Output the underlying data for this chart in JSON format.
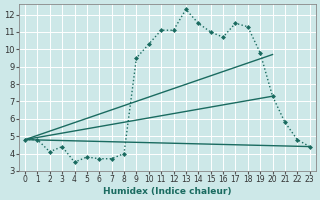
{
  "title": "",
  "xlabel": "Humidex (Indice chaleur)",
  "ylabel": "",
  "bg_color": "#cde8e8",
  "grid_color": "#b8d8d8",
  "line_color": "#1a6b60",
  "xlim": [
    -0.5,
    23.5
  ],
  "ylim": [
    3.0,
    12.6
  ],
  "xticks": [
    0,
    1,
    2,
    3,
    4,
    5,
    6,
    7,
    8,
    9,
    10,
    11,
    12,
    13,
    14,
    15,
    16,
    17,
    18,
    19,
    20,
    21,
    22,
    23
  ],
  "yticks": [
    3,
    4,
    5,
    6,
    7,
    8,
    9,
    10,
    11,
    12
  ],
  "series": [
    {
      "x": [
        0,
        1,
        2,
        3,
        4,
        5,
        6,
        7,
        8,
        9,
        10,
        11,
        12,
        13,
        14,
        15,
        16,
        17,
        18,
        19,
        20,
        21,
        22,
        23
      ],
      "y": [
        4.8,
        4.8,
        4.1,
        4.4,
        3.5,
        3.8,
        3.7,
        3.7,
        4.0,
        9.5,
        10.3,
        11.1,
        11.1,
        12.3,
        11.5,
        11.0,
        10.7,
        11.5,
        11.3,
        9.8,
        7.3,
        5.8,
        4.8,
        4.4
      ],
      "style": ":",
      "marker": "D",
      "markersize": 2.0,
      "linewidth": 1.0
    },
    {
      "x": [
        0,
        23
      ],
      "y": [
        4.8,
        4.4
      ],
      "style": "-",
      "marker": null,
      "markersize": 0,
      "linewidth": 1.0
    },
    {
      "x": [
        0,
        20
      ],
      "y": [
        4.8,
        9.7
      ],
      "style": "-",
      "marker": null,
      "markersize": 0,
      "linewidth": 1.0
    },
    {
      "x": [
        0,
        20
      ],
      "y": [
        4.8,
        7.3
      ],
      "style": "-",
      "marker": null,
      "markersize": 0,
      "linewidth": 1.0
    }
  ]
}
